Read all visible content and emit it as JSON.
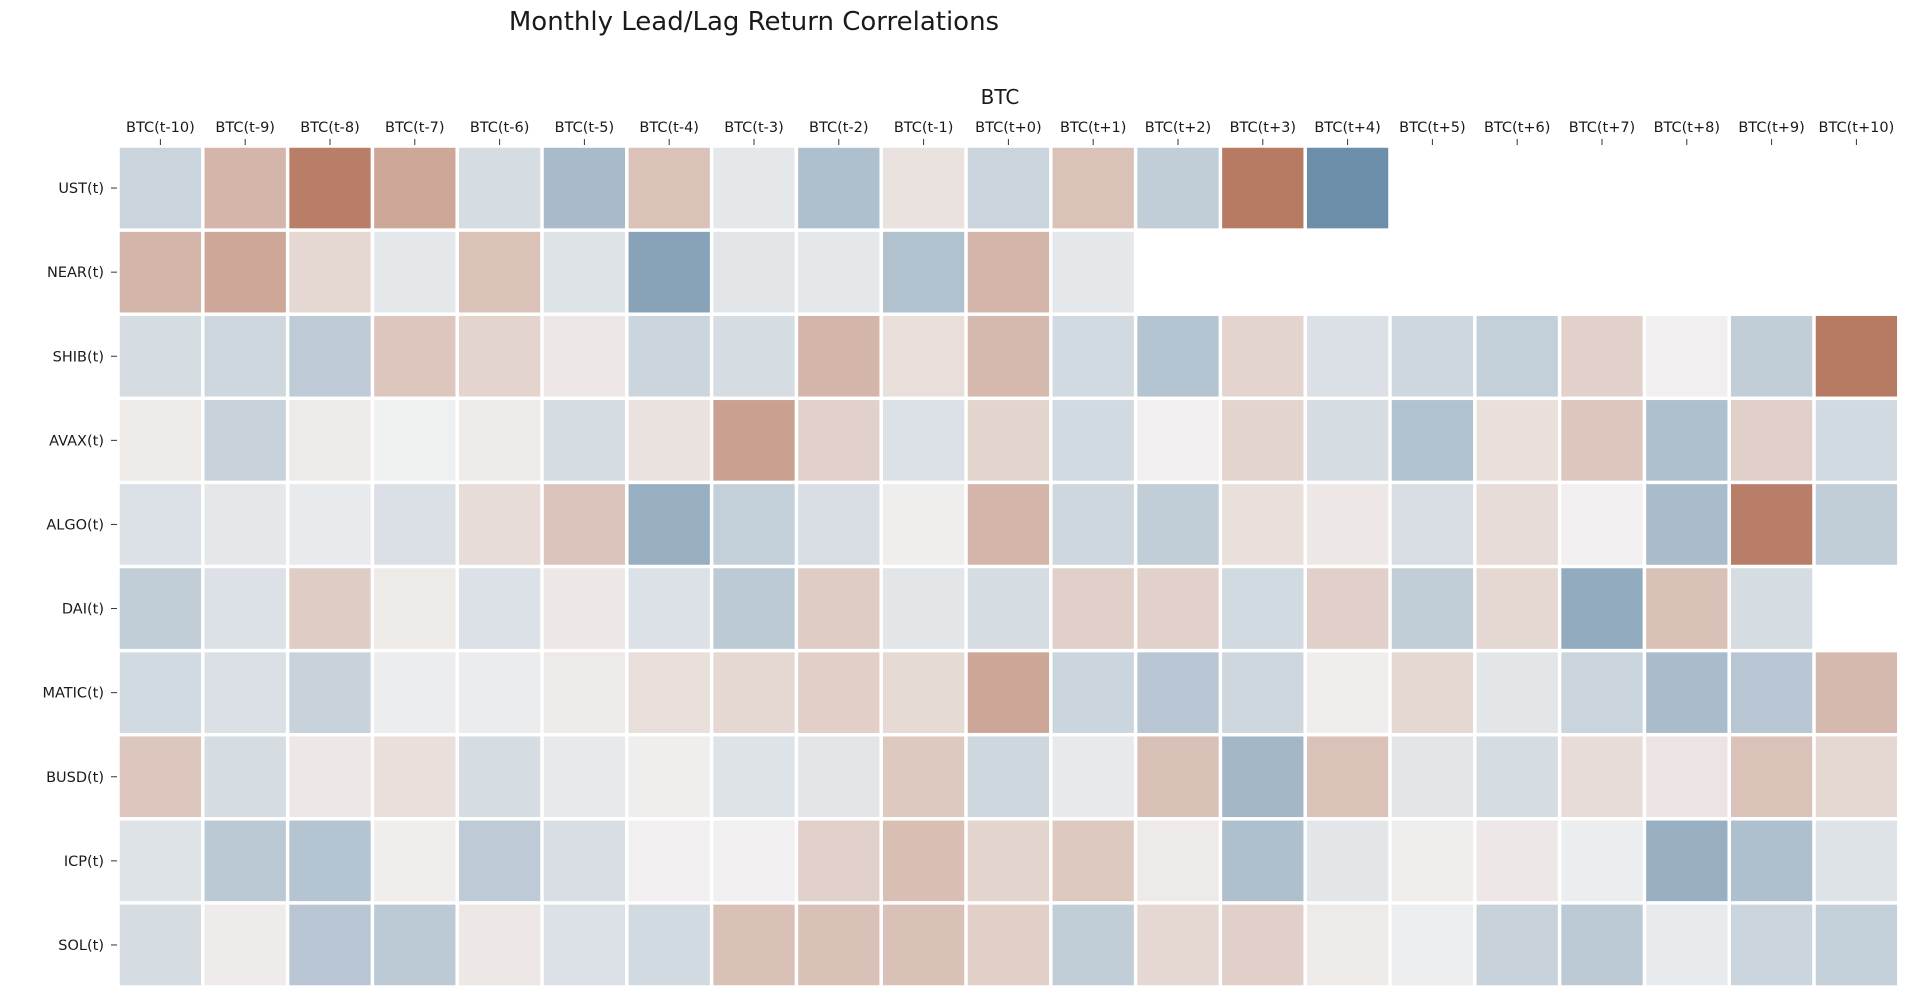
{
  "chart_data": {
    "type": "heatmap",
    "title": "Monthly Lead/Lag Return Correlations",
    "xlabel": "BTC",
    "ylabel": "",
    "colormap": {
      "negative": "#4f7899",
      "neutral": "#f2f2f2",
      "positive": "#af6a4f"
    },
    "value_range": [
      -1,
      1
    ],
    "columns": [
      "BTC(t-10)",
      "BTC(t-9)",
      "BTC(t-8)",
      "BTC(t-7)",
      "BTC(t-6)",
      "BTC(t-5)",
      "BTC(t-4)",
      "BTC(t-3)",
      "BTC(t-2)",
      "BTC(t-1)",
      "BTC(t+0)",
      "BTC(t+1)",
      "BTC(t+2)",
      "BTC(t+3)",
      "BTC(t+4)",
      "BTC(t+5)",
      "BTC(t+6)",
      "BTC(t+7)",
      "BTC(t+8)",
      "BTC(t+9)",
      "BTC(t+10)"
    ],
    "rows": [
      {
        "label": "UST(t)",
        "values": [
          -0.25,
          0.45,
          0.85,
          0.55,
          -0.18,
          -0.45,
          0.35,
          -0.08,
          -0.42,
          0.12,
          -0.25,
          0.35,
          -0.3,
          0.88,
          -0.82,
          null,
          null,
          null,
          null,
          null,
          null
        ]
      },
      {
        "label": "NEAR(t)",
        "values": [
          0.45,
          0.55,
          0.2,
          -0.08,
          0.35,
          -0.12,
          -0.65,
          -0.1,
          -0.08,
          -0.4,
          0.45,
          -0.08,
          null,
          null,
          null,
          null,
          null,
          null,
          null,
          null,
          null
        ]
      },
      {
        "label": "SHIB(t)",
        "values": [
          -0.18,
          -0.22,
          -0.32,
          0.32,
          0.22,
          0.08,
          -0.24,
          -0.18,
          0.45,
          0.15,
          0.42,
          -0.2,
          -0.38,
          0.22,
          -0.15,
          -0.22,
          -0.28,
          0.24,
          0.02,
          -0.3,
          0.88
        ]
      },
      {
        "label": "AVAX(t)",
        "values": [
          0.06,
          -0.26,
          0.06,
          -0.02,
          0.06,
          -0.18,
          0.12,
          0.6,
          0.24,
          -0.14,
          0.22,
          -0.2,
          0.02,
          0.22,
          -0.18,
          -0.4,
          0.14,
          0.32,
          -0.42,
          0.25,
          -0.2
        ]
      },
      {
        "label": "ALGO(t)",
        "values": [
          -0.14,
          -0.08,
          -0.06,
          -0.15,
          0.16,
          0.34,
          -0.55,
          -0.28,
          -0.16,
          0.03,
          0.45,
          -0.22,
          -0.3,
          0.14,
          0.08,
          -0.16,
          0.16,
          0.02,
          -0.44,
          0.85,
          -0.3
        ]
      },
      {
        "label": "DAI(t)",
        "values": [
          -0.3,
          -0.14,
          0.28,
          0.06,
          -0.14,
          0.08,
          -0.14,
          -0.33,
          0.28,
          -0.1,
          -0.18,
          0.25,
          0.24,
          -0.2,
          0.25,
          -0.3,
          0.2,
          -0.58,
          0.36,
          -0.18,
          null
        ]
      },
      {
        "label": "MATIC(t)",
        "values": [
          -0.2,
          -0.15,
          -0.26,
          -0.04,
          -0.05,
          0.06,
          0.15,
          0.2,
          0.26,
          0.18,
          0.56,
          -0.24,
          -0.36,
          -0.22,
          0.03,
          0.2,
          -0.1,
          -0.25,
          -0.44,
          -0.36,
          0.42
        ]
      },
      {
        "label": "BUSD(t)",
        "values": [
          0.32,
          -0.18,
          0.08,
          0.14,
          -0.18,
          -0.07,
          0.03,
          -0.12,
          -0.1,
          0.3,
          -0.22,
          -0.07,
          0.36,
          -0.48,
          0.35,
          -0.1,
          -0.18,
          0.16,
          0.1,
          0.35,
          0.2
        ]
      },
      {
        "label": "ICP(t)",
        "values": [
          -0.12,
          -0.34,
          -0.38,
          0.03,
          -0.32,
          -0.16,
          0.02,
          0.02,
          0.24,
          0.38,
          0.22,
          0.3,
          0.06,
          -0.42,
          -0.1,
          0.03,
          0.07,
          -0.04,
          -0.55,
          -0.42,
          -0.12
        ]
      },
      {
        "label": "SOL(t)",
        "values": [
          -0.18,
          0.05,
          -0.36,
          -0.33,
          0.08,
          -0.14,
          -0.2,
          0.36,
          0.36,
          0.36,
          0.26,
          -0.3,
          0.2,
          0.25,
          0.06,
          -0.03,
          -0.26,
          -0.33,
          -0.06,
          -0.24,
          -0.28
        ]
      }
    ]
  }
}
